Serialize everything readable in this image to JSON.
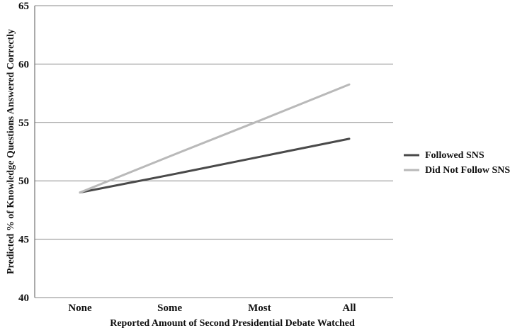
{
  "chart_data": {
    "type": "line",
    "title": "",
    "xlabel": "Reported Amount of Second Presidential Debate Watched",
    "ylabel": "Predicted % of Knowledge Questions Answered Correctly",
    "categories": [
      "None",
      "Some",
      "Most",
      "All"
    ],
    "ylim": [
      40,
      65
    ],
    "yticks": [
      40,
      45,
      50,
      55,
      60,
      65
    ],
    "grid": true,
    "legend_position": "right",
    "series": [
      {
        "name": "Followed SNS",
        "values": [
          49.0,
          50.5,
          52.05,
          53.6
        ],
        "color": "#4a4a4a"
      },
      {
        "name": "Did Not Follow SNS",
        "values": [
          49.0,
          52.1,
          55.15,
          58.25
        ],
        "color": "#b9b9b9"
      }
    ]
  }
}
